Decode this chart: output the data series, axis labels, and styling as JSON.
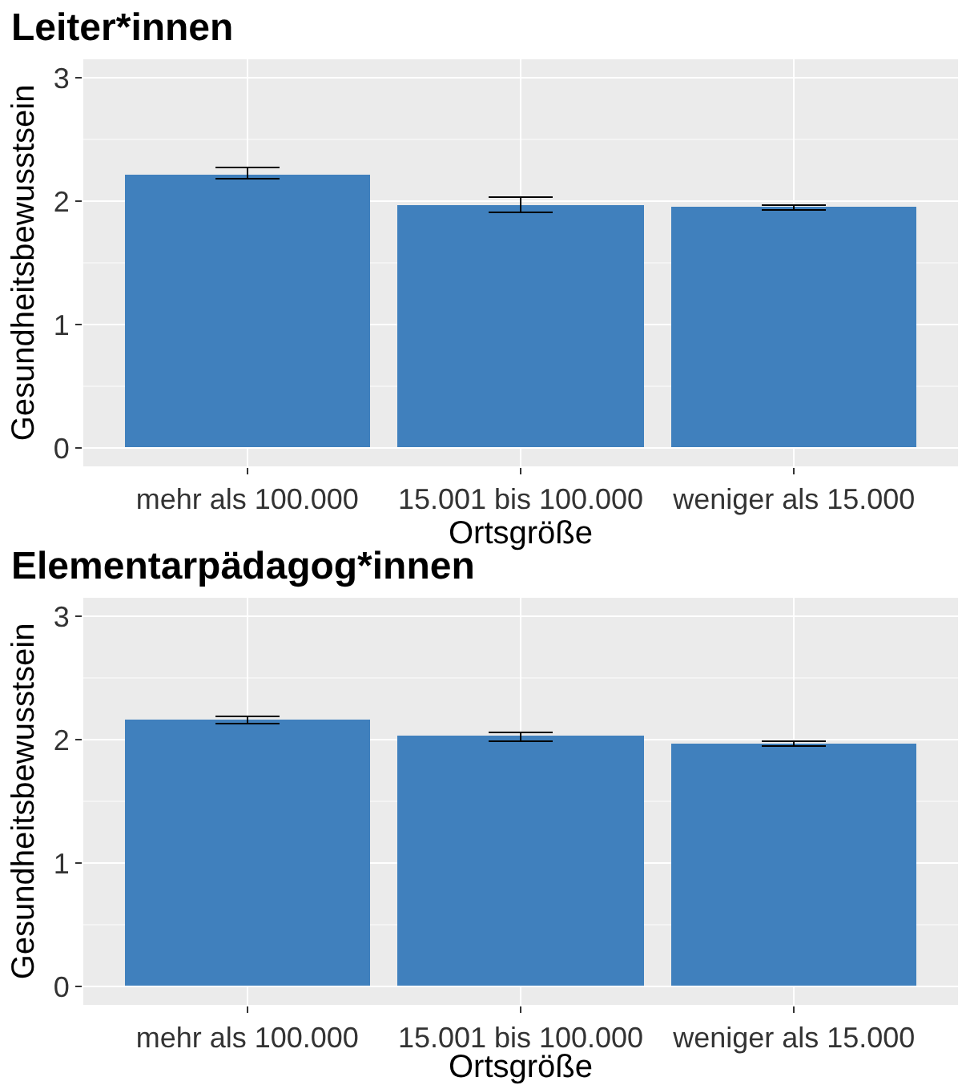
{
  "chart_data": [
    {
      "type": "bar",
      "title": "Leiter*innen",
      "xlabel": "Ortsgröße",
      "ylabel": "Gesundheitsbewusstsein",
      "categories": [
        "mehr als 100.000",
        "15.001 bis 100.000",
        "weniger als 15.000"
      ],
      "values": [
        2.22,
        1.97,
        1.96
      ],
      "errors": [
        [
          2.18,
          2.27
        ],
        [
          1.91,
          2.03
        ],
        [
          1.93,
          1.97
        ]
      ],
      "color": "#4080bd",
      "ylim": [
        -0.15,
        3.15
      ],
      "yticks": [
        0,
        1,
        2,
        3
      ],
      "grid": true
    },
    {
      "type": "bar",
      "title": "Elementarpädagog*innen",
      "xlabel": "Ortsgröße",
      "ylabel": "Gesundheitsbewusstsein",
      "categories": [
        "mehr als 100.000",
        "15.001 bis 100.000",
        "weniger als 15.000"
      ],
      "values": [
        2.16,
        2.03,
        1.97
      ],
      "errors": [
        [
          2.13,
          2.19
        ],
        [
          1.99,
          2.06
        ],
        [
          1.95,
          1.99
        ]
      ],
      "color": "#4080bd",
      "ylim": [
        -0.15,
        3.15
      ],
      "yticks": [
        0,
        1,
        2,
        3
      ],
      "grid": true
    }
  ]
}
